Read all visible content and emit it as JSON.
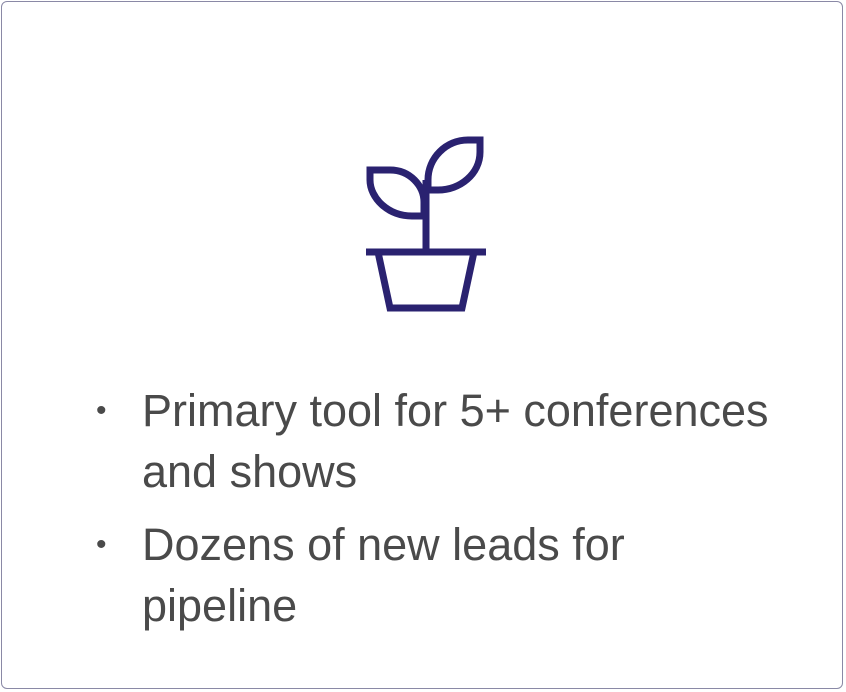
{
  "icon": {
    "name": "plant-icon",
    "color": "#2a2270"
  },
  "bullets": [
    {
      "text": "Primary tool for 5+ conferences and shows"
    },
    {
      "text": "Dozens of new leads for pipeline"
    }
  ],
  "colors": {
    "text": "#4a4a4a",
    "border": "#8a89a6",
    "accent": "#2a2270"
  }
}
